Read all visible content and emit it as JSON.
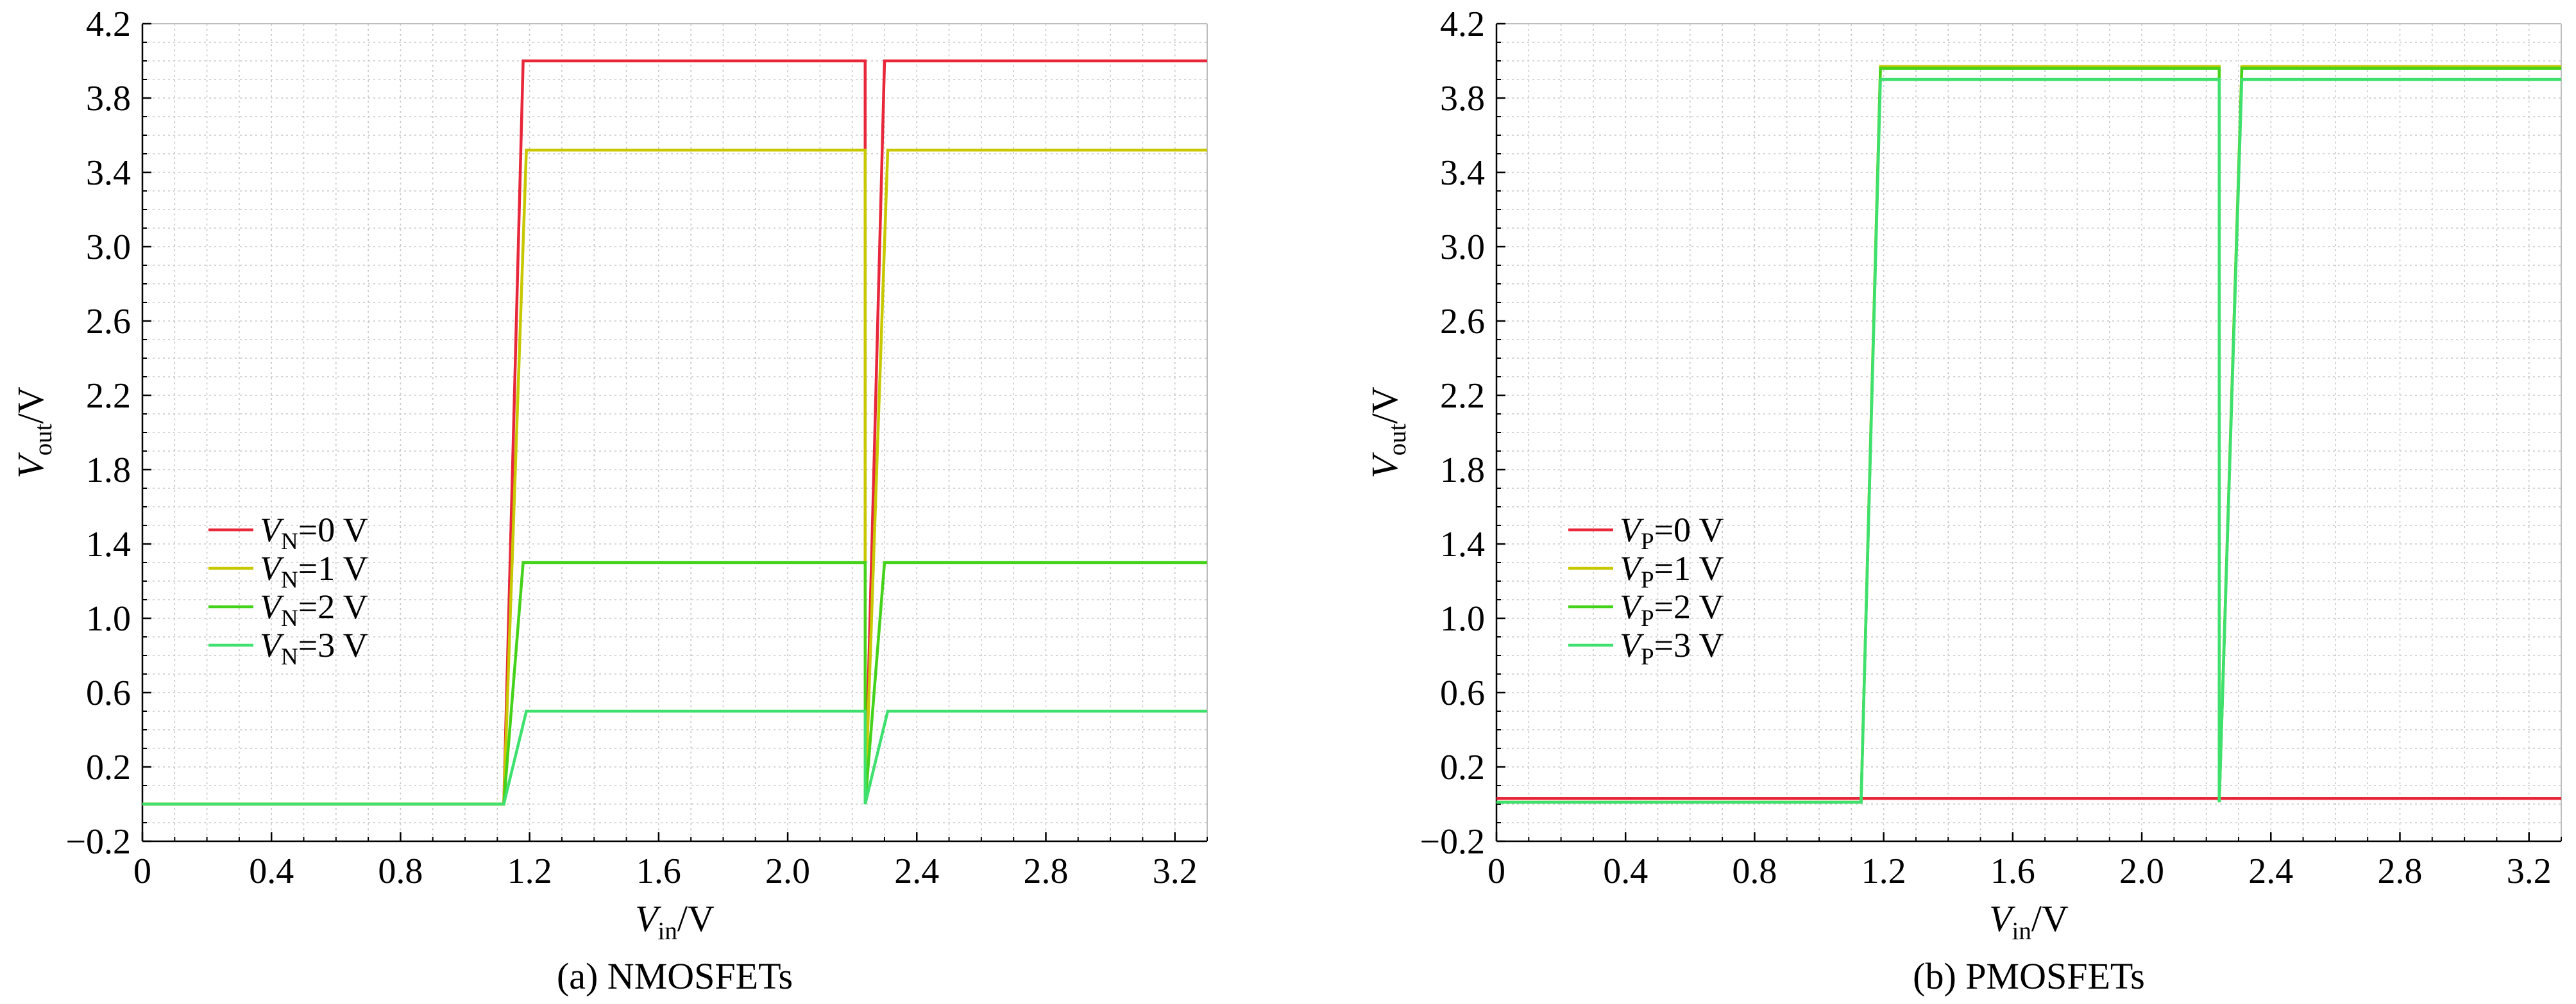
{
  "chart_data": [
    {
      "type": "line",
      "id": "a",
      "caption": "(a) NMOSFETs",
      "xlabel": {
        "main": "V",
        "sub": "in",
        "unit": "/V"
      },
      "ylabel": {
        "main": "V",
        "sub": "out",
        "unit": "/V"
      },
      "xlim": [
        0,
        3.3
      ],
      "ylim": [
        -0.2,
        4.2
      ],
      "xticks": [
        0,
        0.4,
        0.8,
        1.2,
        1.6,
        2.0,
        2.4,
        2.8,
        3.2
      ],
      "xtick_labels": [
        "0",
        "0.4",
        "0.8",
        "1.2",
        "1.6",
        "2.0",
        "2.4",
        "2.8",
        "3.2"
      ],
      "yticks": [
        -0.2,
        0.2,
        0.6,
        1.0,
        1.4,
        1.8,
        2.2,
        2.6,
        3.0,
        3.4,
        3.8,
        4.2
      ],
      "ytick_labels": [
        "−0.2",
        "0.2",
        "0.6",
        "1.0",
        "1.4",
        "1.8",
        "2.2",
        "2.6",
        "3.0",
        "3.4",
        "3.8",
        "4.2"
      ],
      "grid": true,
      "legend": "center-left",
      "series": [
        {
          "name": {
            "main": "V",
            "sub": "N",
            "rest": "=0 V"
          },
          "color": "#e8273a",
          "points": [
            [
              0,
              0
            ],
            [
              1.12,
              0
            ],
            [
              1.18,
              4.0
            ],
            [
              2.24,
              4.0
            ],
            [
              2.24,
              0
            ],
            [
              2.3,
              4.0
            ],
            [
              3.3,
              4.0
            ]
          ]
        },
        {
          "name": {
            "main": "V",
            "sub": "N",
            "rest": "=1 V"
          },
          "color": "#c8c800",
          "points": [
            [
              0,
              0
            ],
            [
              1.12,
              0
            ],
            [
              1.19,
              3.52
            ],
            [
              2.24,
              3.52
            ],
            [
              2.24,
              0
            ],
            [
              2.31,
              3.52
            ],
            [
              3.3,
              3.52
            ]
          ]
        },
        {
          "name": {
            "main": "V",
            "sub": "N",
            "rest": "=2 V"
          },
          "color": "#44d21a",
          "points": [
            [
              0,
              0
            ],
            [
              1.12,
              0
            ],
            [
              1.18,
              1.3
            ],
            [
              2.24,
              1.3
            ],
            [
              2.24,
              0
            ],
            [
              2.3,
              1.3
            ],
            [
              3.3,
              1.3
            ]
          ]
        },
        {
          "name": {
            "main": "V",
            "sub": "N",
            "rest": "=3 V"
          },
          "color": "#3ee06e",
          "points": [
            [
              0,
              0
            ],
            [
              1.12,
              0
            ],
            [
              1.19,
              0.5
            ],
            [
              2.24,
              0.5
            ],
            [
              2.24,
              0
            ],
            [
              2.31,
              0.5
            ],
            [
              3.3,
              0.5
            ]
          ]
        }
      ]
    },
    {
      "type": "line",
      "id": "b",
      "caption": "(b) PMOSFETs",
      "xlabel": {
        "main": "V",
        "sub": "in",
        "unit": "/V"
      },
      "ylabel": {
        "main": "V",
        "sub": "out",
        "unit": "/V"
      },
      "xlim": [
        0,
        3.3
      ],
      "ylim": [
        -0.2,
        4.2
      ],
      "xticks": [
        0,
        0.4,
        0.8,
        1.2,
        1.6,
        2.0,
        2.4,
        2.8,
        3.2
      ],
      "xtick_labels": [
        "0",
        "0.4",
        "0.8",
        "1.2",
        "1.6",
        "2.0",
        "2.4",
        "2.8",
        "3.2"
      ],
      "yticks": [
        -0.2,
        0.2,
        0.6,
        1.0,
        1.4,
        1.8,
        2.2,
        2.6,
        3.0,
        3.4,
        3.8,
        4.2
      ],
      "ytick_labels": [
        "−0.2",
        "0.2",
        "0.6",
        "1.0",
        "1.4",
        "1.8",
        "2.2",
        "2.6",
        "3.0",
        "3.4",
        "3.8",
        "4.2"
      ],
      "grid": true,
      "legend": "center-left",
      "series": [
        {
          "name": {
            "main": "V",
            "sub": "P",
            "rest": "=0 V"
          },
          "color": "#e8273a",
          "points": [
            [
              0,
              0.03
            ],
            [
              2.24,
              0.03
            ],
            [
              2.25,
              0.03
            ],
            [
              3.3,
              0.03
            ]
          ]
        },
        {
          "name": {
            "main": "V",
            "sub": "P",
            "rest": "=1 V"
          },
          "color": "#c8c800",
          "points": [
            [
              0,
              0.01
            ],
            [
              1.13,
              0.01
            ],
            [
              1.19,
              3.97
            ],
            [
              2.24,
              3.97
            ],
            [
              2.24,
              0.01
            ],
            [
              2.31,
              3.97
            ],
            [
              3.3,
              3.97
            ]
          ]
        },
        {
          "name": {
            "main": "V",
            "sub": "P",
            "rest": "=2 V"
          },
          "color": "#44d21a",
          "points": [
            [
              0,
              0.01
            ],
            [
              1.13,
              0.01
            ],
            [
              1.19,
              3.96
            ],
            [
              2.24,
              3.96
            ],
            [
              2.24,
              0.01
            ],
            [
              2.31,
              3.96
            ],
            [
              3.3,
              3.96
            ]
          ]
        },
        {
          "name": {
            "main": "V",
            "sub": "P",
            "rest": "=3 V"
          },
          "color": "#3ee06e",
          "points": [
            [
              0,
              0.01
            ],
            [
              1.13,
              0.01
            ],
            [
              1.19,
              3.9
            ],
            [
              2.24,
              3.9
            ],
            [
              2.24,
              0.01
            ],
            [
              2.31,
              3.9
            ],
            [
              3.3,
              3.9
            ]
          ]
        }
      ]
    }
  ]
}
